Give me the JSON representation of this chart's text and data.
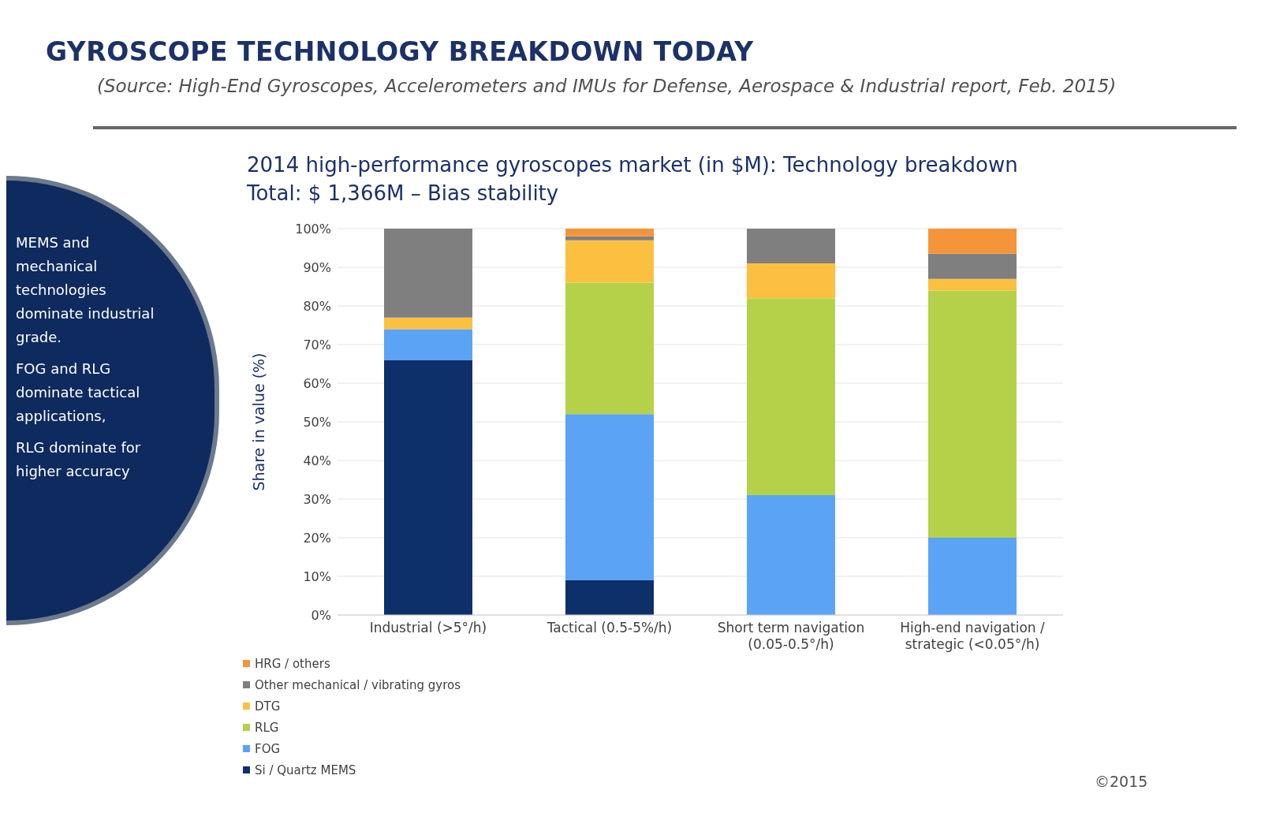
{
  "chart_data": {
    "type": "bar",
    "title": "GYROSCOPE TECHNOLOGY BREAKDOWN TODAY",
    "subtitle": "2014 high-performance gyroscopes market (in $M): Technology breakdown",
    "ylabel": "Share in value (%)",
    "annotations": [
      "(Source: High-End Gyroscopes, Accelerometers and IMUs for Defense, Aerospace & Industrial report, Feb. 2015)",
      "Total: $ 1,366M – Bias stability",
      "MEMS and mechanical technologies dominate industrial grade.",
      "FOG and RLG dominate tactical applications,",
      "RLG dominate for higher accuracy",
      "©2015"
    ],
    "categories": [
      "Industrial (>5°/h)",
      "Tactical (0.5-5%/h)",
      "Short term navigation (0.05-0.5°/h)",
      "High-end navigation / strategic (<0.05°/h)"
    ],
    "stacked": true,
    "ylim": [
      0,
      100
    ],
    "yticks": [
      {
        "value": 0,
        "label": "0%"
      },
      {
        "value": 10,
        "label": "10%"
      },
      {
        "value": 20,
        "label": "20%"
      },
      {
        "value": 30,
        "label": "30%"
      },
      {
        "value": 40,
        "label": "40%"
      },
      {
        "value": 50,
        "label": "50%"
      },
      {
        "value": 60,
        "label": "60%"
      },
      {
        "value": 70,
        "label": "70%"
      },
      {
        "value": 80,
        "label": "80%"
      },
      {
        "value": 90,
        "label": "90%"
      },
      {
        "value": 100,
        "label": "100%"
      }
    ],
    "grid": "y",
    "legend": "bottom",
    "series": [
      {
        "name": "Si / Quartz MEMS",
        "color": "#0d2f6a",
        "values": [
          66,
          9,
          0,
          0
        ]
      },
      {
        "name": "FOG",
        "color": "#5ba3f5",
        "values": [
          8,
          43,
          31,
          20
        ]
      },
      {
        "name": "RLG",
        "color": "#b5d14a",
        "values": [
          0,
          34,
          51,
          64
        ]
      },
      {
        "name": "DTG",
        "color": "#fbc040",
        "values": [
          3,
          11,
          9,
          3
        ]
      },
      {
        "name": "Other mechanical / vibrating gyros",
        "color": "#7f7f7f",
        "values": [
          23,
          1,
          9,
          6.5
        ]
      },
      {
        "name": "HRG / others",
        "color": "#f5953a",
        "values": [
          0,
          2,
          0,
          6.5
        ]
      }
    ]
  }
}
